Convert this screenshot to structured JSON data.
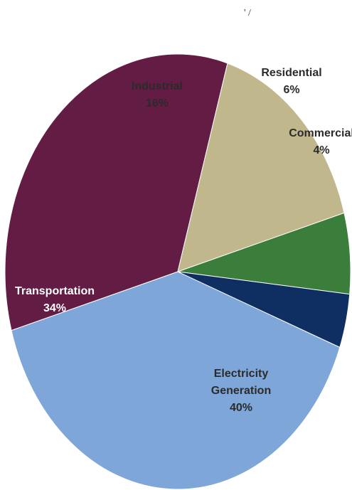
{
  "header": {
    "marks": "' /"
  },
  "chart_data": {
    "type": "pie",
    "title": "",
    "start_angle_deg": 20.34,
    "direction": "clockwise",
    "slices": [
      {
        "label": "Electricity Generation",
        "value": 40,
        "percent_text": "40%",
        "color": "#7fa6d8",
        "label_color": "#2b2b2b"
      },
      {
        "label": "Transportation",
        "value": 34,
        "percent_text": "34%",
        "color": "#631c44",
        "label_color": "#ffffff"
      },
      {
        "label": "Industrial",
        "value": 16,
        "percent_text": "16%",
        "color": "#c1b78d",
        "label_color": "#2b2b2b"
      },
      {
        "label": "Residential",
        "value": 6,
        "percent_text": "6%",
        "color": "#3b7d3a",
        "label_color": "#2b2b2b"
      },
      {
        "label": "Commercial",
        "value": 4,
        "percent_text": "4%",
        "color": "#0f2f63",
        "label_color": "#2b2b2b"
      }
    ]
  }
}
